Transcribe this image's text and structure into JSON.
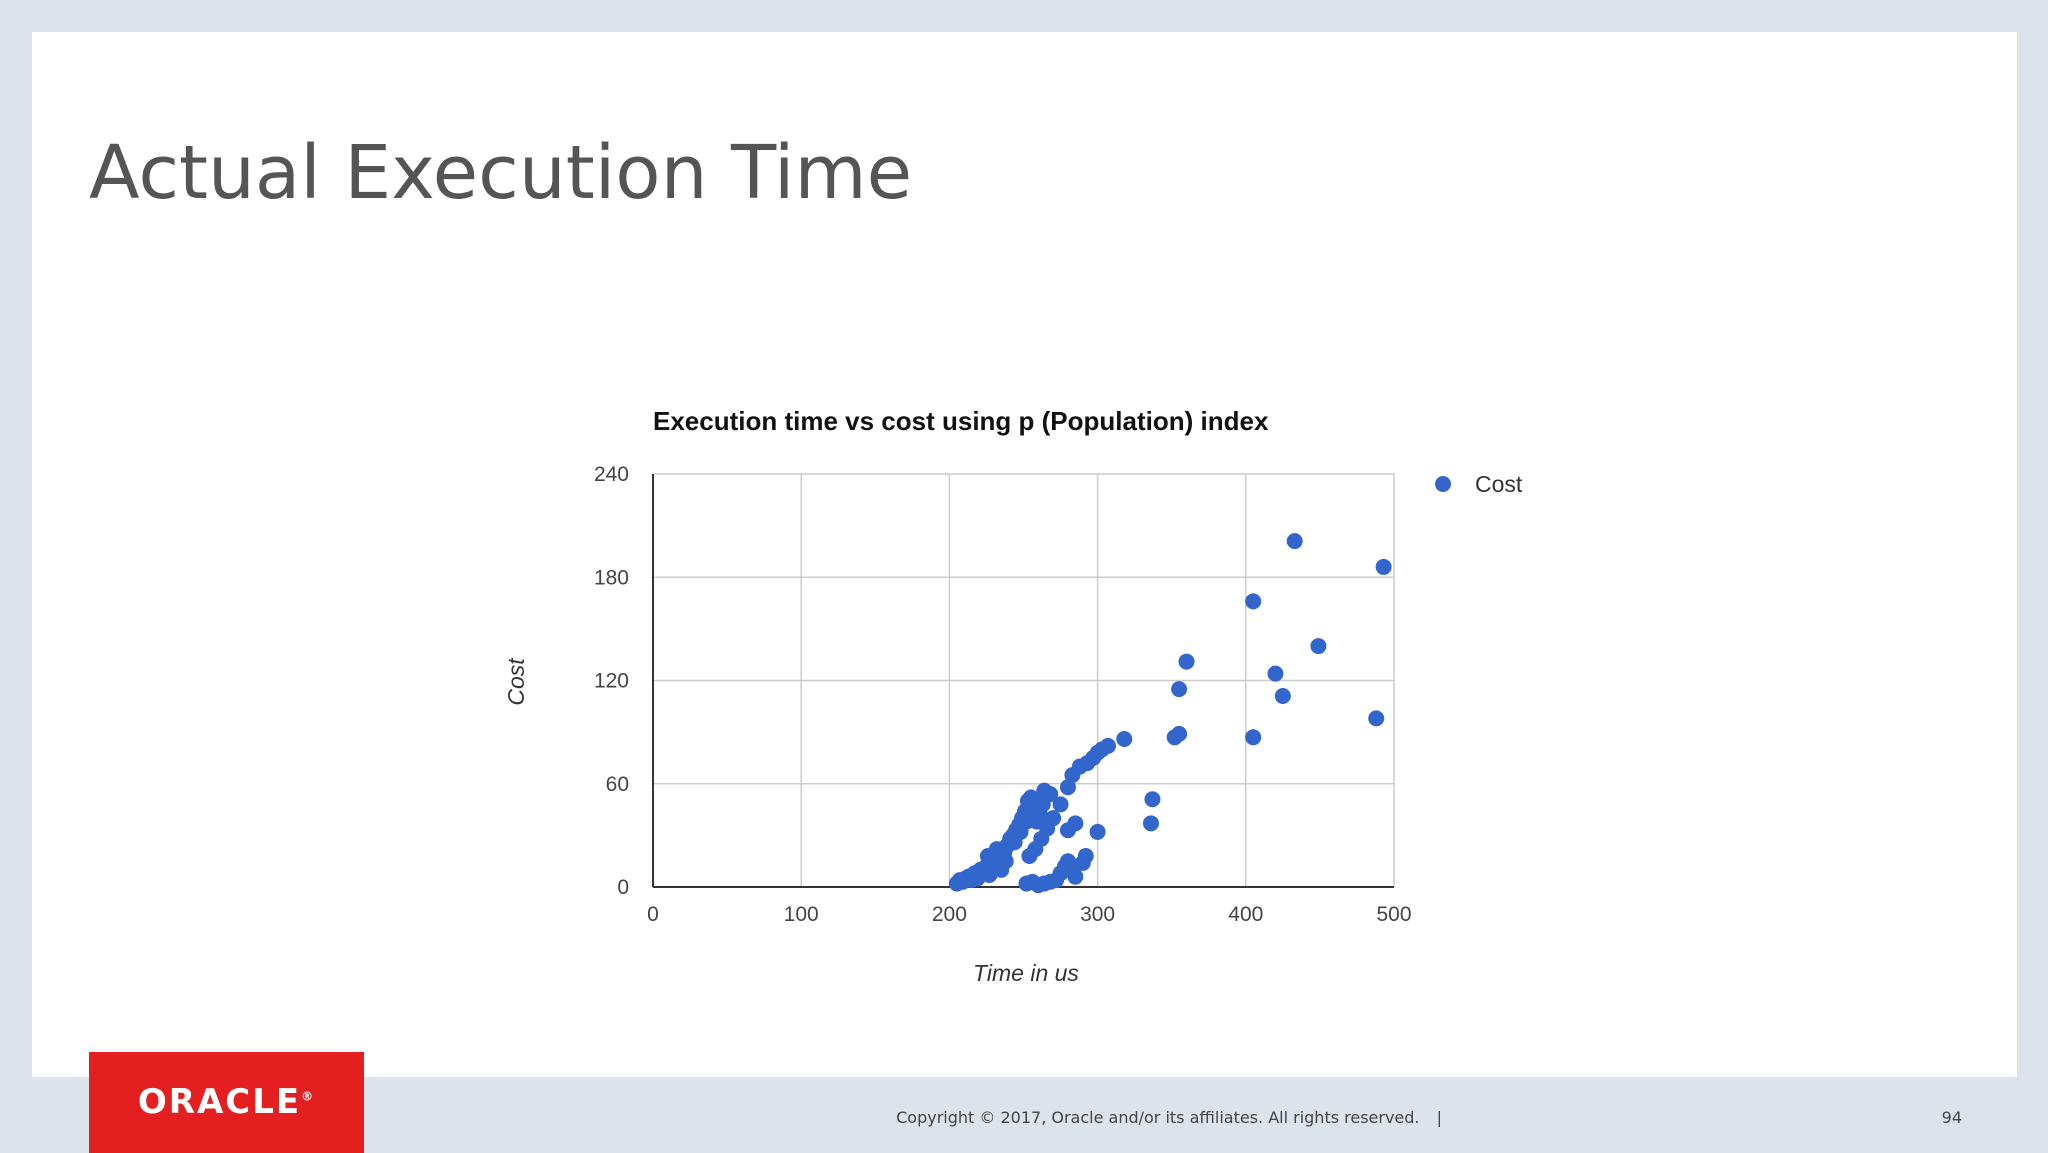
{
  "slide": {
    "title": "Actual Execution Time",
    "copyright": "Copyright © 2017, Oracle and/or its affiliates. All rights reserved.",
    "separator": "|",
    "page_number": "94",
    "logo_text": "ORACLE",
    "logo_registered": "®"
  },
  "colors": {
    "accent": "#3366cc",
    "logo_red": "#e41f1f",
    "title_gray": "#555555",
    "grid": "#cccccc"
  },
  "chart_data": {
    "type": "scatter",
    "title": "Execution time vs cost using p (Population) index",
    "xlabel": "Time in us",
    "ylabel": "Cost",
    "xlim": [
      0,
      500
    ],
    "ylim": [
      0,
      240
    ],
    "x_ticks": [
      "0",
      "100",
      "200",
      "300",
      "400",
      "500"
    ],
    "y_ticks": [
      "0",
      "60",
      "120",
      "180",
      "240"
    ],
    "grid": true,
    "legend_position": "right",
    "series": [
      {
        "name": "Cost",
        "color": "#3366cc",
        "points": [
          [
            205,
            2
          ],
          [
            207,
            4
          ],
          [
            209,
            3
          ],
          [
            211,
            5
          ],
          [
            213,
            6
          ],
          [
            215,
            4
          ],
          [
            217,
            8
          ],
          [
            219,
            5
          ],
          [
            221,
            10
          ],
          [
            223,
            9
          ],
          [
            225,
            12
          ],
          [
            227,
            7
          ],
          [
            229,
            14
          ],
          [
            231,
            11
          ],
          [
            233,
            16
          ],
          [
            235,
            10
          ],
          [
            237,
            20
          ],
          [
            239,
            24
          ],
          [
            241,
            28
          ],
          [
            243,
            30
          ],
          [
            245,
            33
          ],
          [
            247,
            36
          ],
          [
            249,
            40
          ],
          [
            251,
            44
          ],
          [
            253,
            50
          ],
          [
            255,
            52
          ],
          [
            257,
            46
          ],
          [
            259,
            38
          ],
          [
            261,
            42
          ],
          [
            263,
            48
          ],
          [
            265,
            55
          ],
          [
            252,
            2
          ],
          [
            256,
            3
          ],
          [
            260,
            1
          ],
          [
            264,
            2
          ],
          [
            268,
            3
          ],
          [
            272,
            4
          ],
          [
            275,
            8
          ],
          [
            278,
            12
          ],
          [
            280,
            15
          ],
          [
            282,
            10
          ],
          [
            285,
            6
          ],
          [
            290,
            14
          ],
          [
            292,
            18
          ],
          [
            254,
            18
          ],
          [
            258,
            22
          ],
          [
            262,
            28
          ],
          [
            266,
            34
          ],
          [
            270,
            40
          ],
          [
            275,
            48
          ],
          [
            280,
            58
          ],
          [
            283,
            65
          ],
          [
            288,
            70
          ],
          [
            293,
            72
          ],
          [
            297,
            75
          ],
          [
            300,
            78
          ],
          [
            303,
            80
          ],
          [
            307,
            82
          ],
          [
            318,
            86
          ],
          [
            280,
            33
          ],
          [
            285,
            37
          ],
          [
            300,
            32
          ],
          [
            336,
            37
          ],
          [
            337,
            51
          ],
          [
            352,
            87
          ],
          [
            355,
            89
          ],
          [
            355,
            115
          ],
          [
            360,
            131
          ],
          [
            405,
            166
          ],
          [
            405,
            87
          ],
          [
            420,
            124
          ],
          [
            425,
            111
          ],
          [
            433,
            201
          ],
          [
            449,
            140
          ],
          [
            488,
            98
          ],
          [
            493,
            186
          ],
          [
            226,
            18
          ],
          [
            232,
            22
          ],
          [
            238,
            15
          ],
          [
            244,
            26
          ],
          [
            248,
            32
          ],
          [
            252,
            38
          ],
          [
            256,
            44
          ],
          [
            260,
            50
          ],
          [
            264,
            56
          ],
          [
            268,
            54
          ]
        ]
      }
    ]
  }
}
